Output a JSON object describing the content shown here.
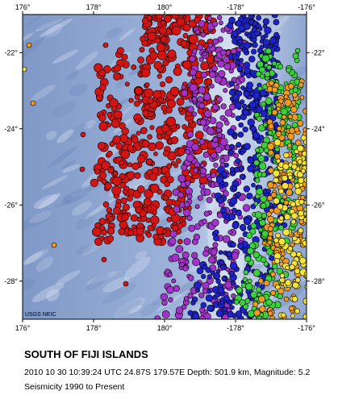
{
  "map": {
    "credit": "USGS NEIC",
    "extent": {
      "lon_min": 176,
      "lon_max": 184,
      "lat_min": -29,
      "lat_max": -21
    },
    "x_ticks": [
      {
        "lon": 176,
        "label": "176°"
      },
      {
        "lon": 178,
        "label": "178°"
      },
      {
        "lon": 180,
        "label": "180°"
      },
      {
        "lon": 182,
        "label": "-178°"
      },
      {
        "lon": 184,
        "label": "-176°"
      }
    ],
    "y_ticks": [
      {
        "lat": -22,
        "label": "-22°"
      },
      {
        "lat": -24,
        "label": "-24°"
      },
      {
        "lat": -26,
        "label": "-26°"
      },
      {
        "lat": -28,
        "label": "-28°"
      }
    ],
    "colors": {
      "ocean": "#8ea6cf",
      "deep_trench": "#d9e0f2",
      "depth_red": "#d41313",
      "depth_magenta": "#a233c9",
      "depth_blue": "#1e22c8",
      "depth_green": "#3ad13a",
      "depth_orange": "#f09a1e",
      "depth_yellow": "#f5e33a"
    }
  },
  "caption": {
    "title": "SOUTH OF FIJI ISLANDS",
    "event": "2010 10 30 10:39:24 UTC 24.87S 179.57E Depth: 501.9 km, Magnitude: 5.2",
    "range": "Seismicity 1990 to Present"
  }
}
